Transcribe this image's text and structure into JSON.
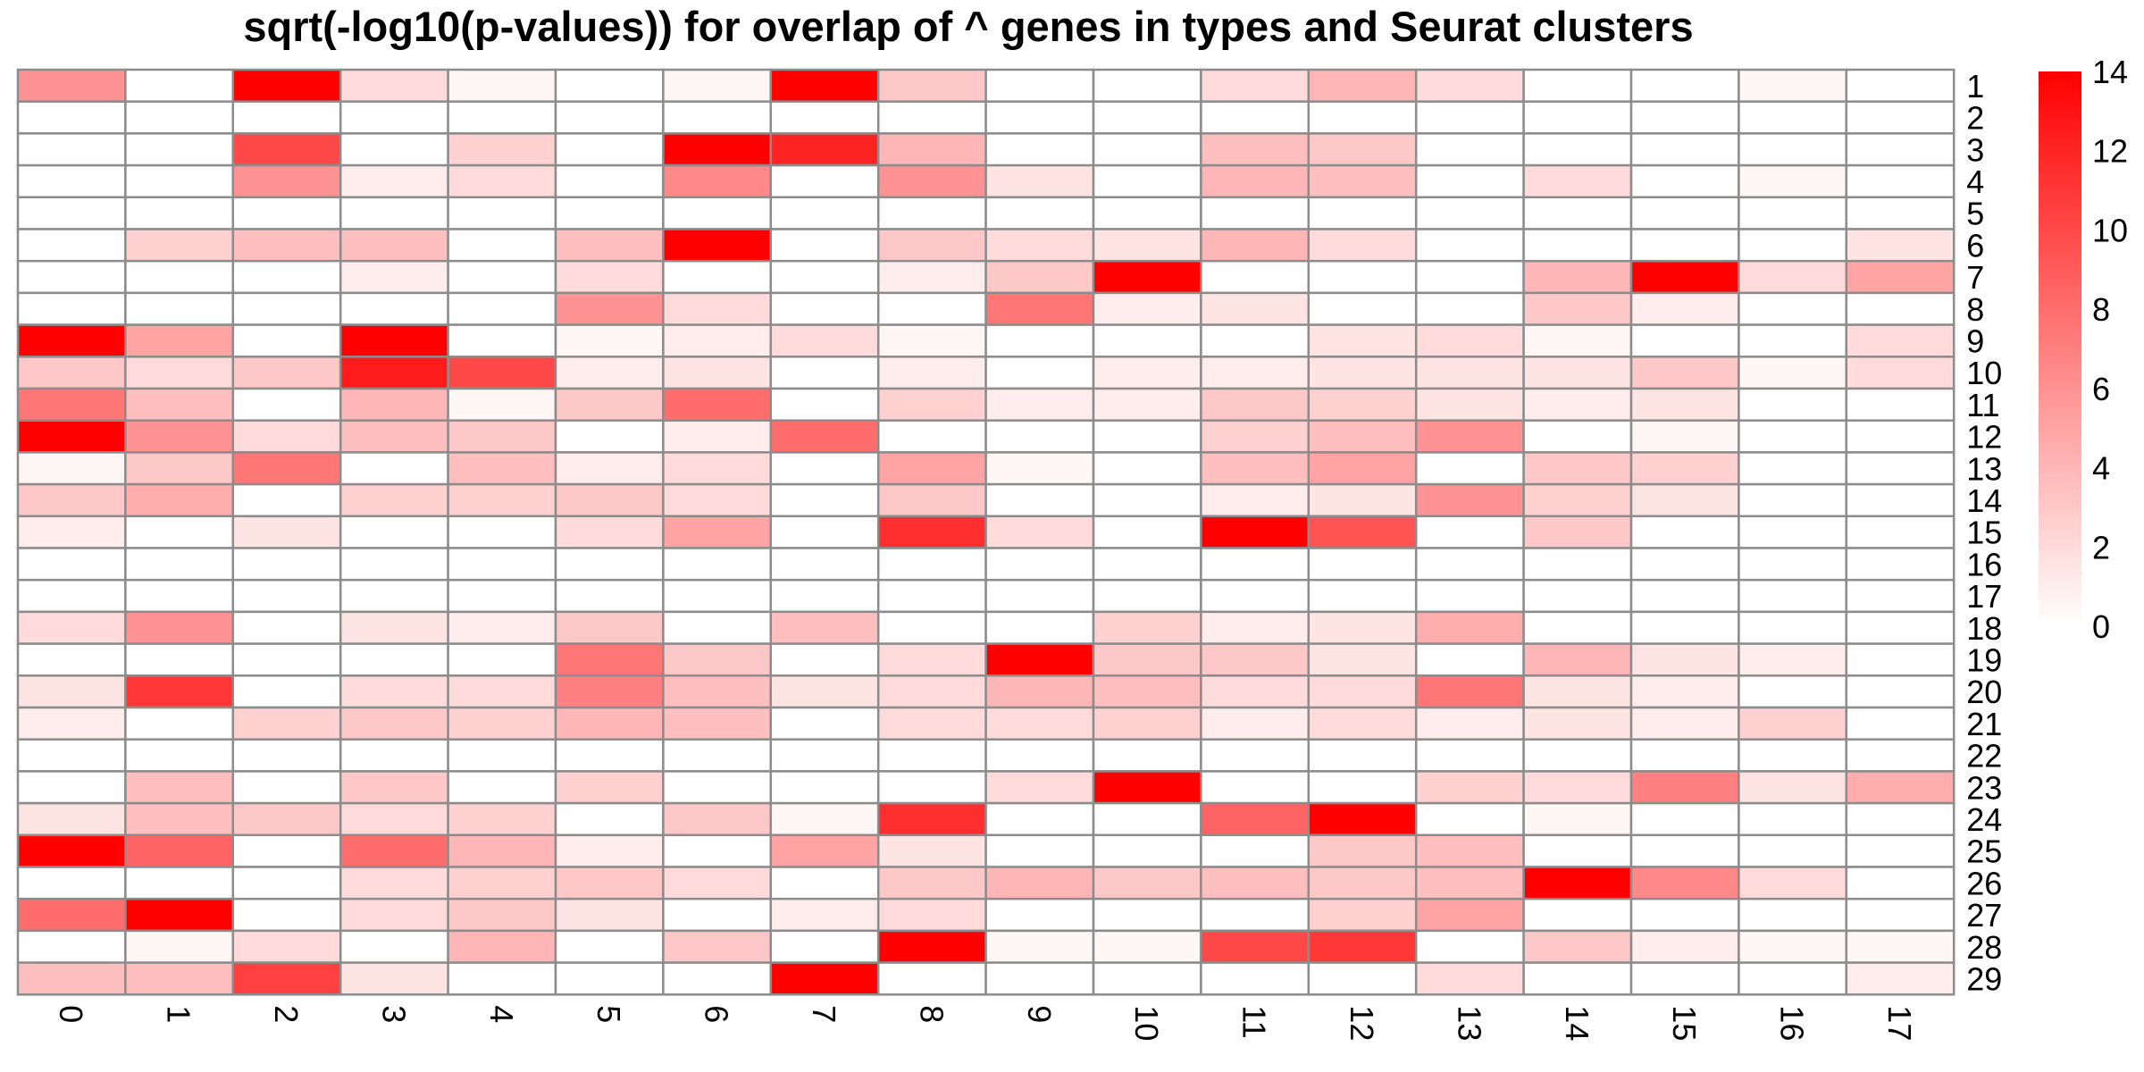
{
  "chart_data": {
    "type": "heatmap",
    "title": "sqrt(-log10(p-values)) for overlap of ^ genes in types and Seurat clusters",
    "x_categories": [
      "0",
      "1",
      "2",
      "3",
      "4",
      "5",
      "6",
      "7",
      "8",
      "9",
      "10",
      "11",
      "12",
      "13",
      "14",
      "15",
      "16",
      "17"
    ],
    "y_categories": [
      "1",
      "2",
      "3",
      "4",
      "5",
      "6",
      "7",
      "8",
      "9",
      "10",
      "11",
      "12",
      "13",
      "14",
      "15",
      "16",
      "17",
      "18",
      "19",
      "20",
      "21",
      "22",
      "23",
      "24",
      "25",
      "26",
      "27",
      "28",
      "29"
    ],
    "values": [
      [
        6,
        0,
        14,
        2,
        0.5,
        0,
        0.5,
        14,
        3,
        0,
        0,
        2,
        4,
        2,
        0,
        0,
        0.5,
        0
      ],
      [
        0,
        0,
        0,
        0,
        0,
        0,
        0,
        0,
        0,
        0,
        0,
        0,
        0,
        0,
        0,
        0,
        0,
        0
      ],
      [
        0,
        0,
        10,
        0,
        2.5,
        0,
        14,
        12,
        4,
        0,
        0,
        3.5,
        3,
        0,
        0,
        0,
        0,
        0
      ],
      [
        0,
        0,
        6,
        1,
        2,
        0,
        6.5,
        0,
        6,
        1.5,
        0,
        4,
        3.5,
        0,
        2,
        0,
        0.5,
        0
      ],
      [
        0,
        0,
        0,
        0,
        0,
        0,
        0,
        0,
        0,
        0,
        0,
        0,
        0,
        0,
        0,
        0,
        0,
        0
      ],
      [
        0,
        2.5,
        3.5,
        3.5,
        0,
        3.5,
        14,
        0,
        3,
        2,
        1.5,
        4,
        2,
        0,
        0,
        0,
        0,
        1.5
      ],
      [
        0,
        0,
        0,
        1,
        0,
        2,
        0,
        0,
        1,
        3,
        14,
        0,
        0,
        0,
        4,
        14,
        2,
        5
      ],
      [
        0,
        0,
        0,
        0,
        0,
        6,
        2,
        0,
        0,
        7.5,
        1,
        1.5,
        0,
        0,
        3,
        1,
        0,
        0
      ],
      [
        14,
        5,
        0,
        14,
        0,
        0.5,
        1,
        2,
        0.5,
        0,
        0,
        0,
        1.5,
        2,
        0.5,
        0,
        0,
        2
      ],
      [
        3,
        2,
        3,
        12.5,
        10,
        1,
        1.5,
        0,
        1,
        0,
        1,
        1,
        1.5,
        1.5,
        1.5,
        3,
        0.5,
        2
      ],
      [
        7.5,
        3.5,
        0,
        4,
        0.5,
        3,
        8,
        0,
        2.5,
        1,
        1,
        3,
        2.5,
        1.5,
        1,
        1.5,
        0,
        0
      ],
      [
        14,
        6,
        2,
        3.5,
        3,
        0,
        1,
        8,
        0,
        0,
        0,
        2.5,
        3.5,
        6,
        0,
        0.5,
        0,
        0
      ],
      [
        0.5,
        3,
        7.5,
        0,
        3.5,
        1,
        2,
        0,
        5,
        0.5,
        0,
        3.5,
        5,
        0,
        3,
        2.5,
        0,
        0
      ],
      [
        3,
        4.5,
        0,
        2.5,
        2.5,
        3,
        2,
        0,
        3,
        0,
        0,
        1,
        1.5,
        6,
        2.5,
        1.5,
        0,
        0
      ],
      [
        1,
        0,
        1.5,
        0,
        0,
        2,
        5,
        0,
        11.5,
        2,
        0,
        14,
        9.5,
        0,
        3,
        0,
        0,
        0
      ],
      [
        0,
        0,
        0,
        0,
        0,
        0,
        0,
        0,
        0,
        0,
        0,
        0,
        0,
        0,
        0,
        0,
        0,
        0
      ],
      [
        0,
        0,
        0,
        0,
        0,
        0,
        0,
        0,
        0,
        0,
        0,
        0,
        0,
        0,
        0,
        0,
        0,
        0
      ],
      [
        2,
        6,
        0,
        1.5,
        1,
        3,
        0,
        3.5,
        0,
        0,
        2.5,
        1,
        1.5,
        4.5,
        0,
        0,
        0,
        0
      ],
      [
        0,
        0,
        0,
        0,
        0,
        7.5,
        3,
        0,
        2,
        14,
        3,
        3,
        1.5,
        0,
        4,
        1.5,
        1,
        0
      ],
      [
        1.5,
        11,
        0,
        2,
        2,
        7,
        3.5,
        1.5,
        2,
        4,
        3.5,
        2,
        2,
        7.5,
        1.5,
        1,
        0,
        0
      ],
      [
        1,
        0,
        2.5,
        3,
        2.5,
        4,
        3.5,
        0,
        2,
        2,
        2.5,
        1,
        2,
        1,
        1.5,
        1,
        2.5,
        0
      ],
      [
        0,
        0,
        0,
        0,
        0,
        0,
        0,
        0,
        0,
        0,
        0,
        0,
        0,
        0,
        0,
        0,
        0,
        0
      ],
      [
        0,
        3.5,
        0,
        3,
        0,
        2.5,
        0,
        0,
        0,
        2,
        14,
        0,
        0,
        2.5,
        2,
        7,
        1.5,
        4.5
      ],
      [
        1.5,
        3.5,
        3,
        2,
        2.5,
        0,
        3,
        0.5,
        11.5,
        0,
        0,
        8.5,
        14,
        0,
        0.5,
        0,
        0,
        0
      ],
      [
        14,
        8.5,
        0,
        8,
        4,
        1,
        0,
        5,
        1.5,
        0,
        0,
        0,
        3,
        3.5,
        0,
        0,
        0,
        0
      ],
      [
        0,
        0,
        0,
        2,
        2.5,
        3,
        2,
        0,
        3,
        4,
        3,
        3.5,
        3,
        3.5,
        14,
        6.5,
        2,
        0
      ],
      [
        8,
        14,
        0,
        2,
        3,
        1.5,
        0,
        1,
        2,
        0,
        0,
        0,
        2.5,
        5,
        0,
        0,
        0,
        0
      ],
      [
        0,
        0.5,
        2,
        0,
        4,
        0,
        3,
        0,
        14,
        0.5,
        0.5,
        10,
        11,
        0,
        3,
        1,
        0.5,
        0.5
      ],
      [
        3.5,
        3.5,
        10.5,
        1.5,
        0,
        0,
        0,
        14,
        0,
        0,
        0,
        0,
        0,
        2,
        0,
        0,
        0,
        1
      ]
    ],
    "color_scale": {
      "low": "#ffffff",
      "high": "#ff0000",
      "min": 0,
      "max": 14
    },
    "colorbar_ticks": [
      "0",
      "2",
      "4",
      "6",
      "8",
      "10",
      "12",
      "14"
    ],
    "legend": "right",
    "grid": true
  }
}
